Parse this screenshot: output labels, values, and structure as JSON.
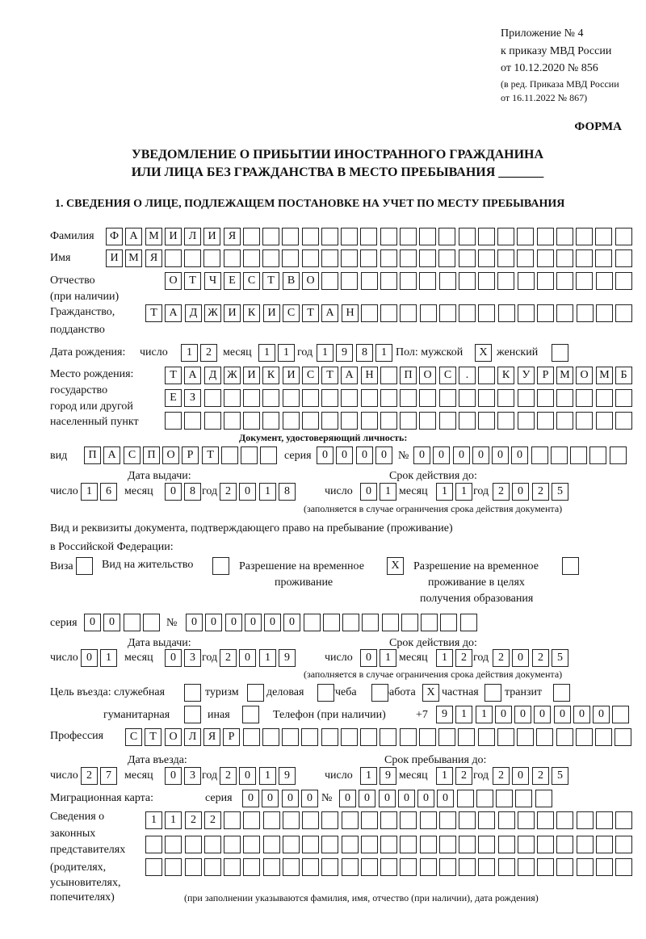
{
  "header": {
    "appendix": "Приложение № 4",
    "order": "к приказу МВД России",
    "order_date": "от 10.12.2020 № 856",
    "edition1": "(в ред. Приказа МВД России",
    "edition2": "от 16.11.2022 № 867)",
    "form": "ФОРМА",
    "title1": "УВЕДОМЛЕНИЕ О ПРИБЫТИИ ИНОСТРАННОГО ГРАЖДАНИНА",
    "title2": "ИЛИ ЛИЦА БЕЗ ГРАЖДАНСТВА В МЕСТО ПРЕБЫВАНИЯ _______"
  },
  "section1": {
    "heading": "1. СВЕДЕНИЯ О ЛИЦЕ, ПОДЛЕЖАЩЕМ ПОСТАНОВКЕ НА УЧЕТ ПО МЕСТУ ПРЕБЫВАНИЯ",
    "labels": {
      "surname": "Фамилия",
      "name": "Имя",
      "patronymic": "Отчество",
      "patronymic2": "(при наличии)",
      "citizenship": "Гражданство,",
      "citizenship2": "подданство",
      "birth_date": "Дата рождения:",
      "day": "число",
      "month": "месяц",
      "year": "год",
      "sex_male": "Пол: мужской",
      "sex_female": "женский",
      "birthplace1": "Место рождения:",
      "birthplace2": "государство",
      "birthplace3": "город или другой",
      "birthplace4": "населенный пункт",
      "id_doc": "Документ, удостоверяющий личность:",
      "kind": "вид",
      "series": "серия",
      "number": "№",
      "issue_date": "Дата выдачи:",
      "valid_until": "Срок действия до:",
      "validity_note": "(заполняется в случае ограничения срока действия документа)",
      "stay_doc1": "Вид и реквизиты документа, подтверждающего право на пребывание (проживание)",
      "stay_doc2": "в Российской Федерации:",
      "visa": "Виза",
      "residence": "Вид на жительство",
      "trp1": "Разрешение на временное",
      "trp2": "проживание",
      "trp_edu1": "Разрешение на временное",
      "trp_edu2": "проживание в целях",
      "trp_edu3": "получения образования",
      "purpose": "Цель въезда: служебная",
      "tourism": "туризм",
      "business": "деловая",
      "study": "учеба",
      "work": "работа",
      "private": "частная",
      "transit": "транзит",
      "humanitarian": "гуманитарная",
      "other": "иная",
      "phone": "Телефон (при наличии)",
      "phone_prefix": "+7",
      "profession": "Профессия",
      "entry_date": "Дата въезда:",
      "stay_until": "Срок пребывания до:",
      "migration_card": "Миграционная карта:",
      "reps1": "Сведения о",
      "reps2": "законных",
      "reps3": "представителях",
      "reps4": "(родителях,",
      "reps5": "усыновителях,",
      "reps6": "попечителях)",
      "reps_note": "(при заполнении указываются фамилия, имя, отчество (при наличии), дата рождения)"
    },
    "values": {
      "surname": "ФАМИЛИЯ",
      "name": "ИМЯ",
      "patronymic": "ОТЧЕСТВО",
      "citizenship": "ТАДЖИКИСТАН",
      "birth_day": "12",
      "birth_month": "11",
      "birth_year": "1981",
      "sex_male": "X",
      "sex_female": "",
      "birthplace_row1": "ТАДЖИКИСТАН ПОС. КУРМОМБ",
      "birthplace_row2": "ЕЗ",
      "birthplace_row3": "",
      "id_kind": "ПАСПОРТ",
      "id_series": "0000",
      "id_number": "000000",
      "id_issue_day": "16",
      "id_issue_month": "08",
      "id_issue_year": "2018",
      "id_valid_day": "01",
      "id_valid_month": "11",
      "id_valid_year": "2025",
      "visa": "",
      "residence": "",
      "trp": "X",
      "trp_edu": "",
      "stay_series": "00",
      "stay_number": "000000",
      "stay_issue_day": "01",
      "stay_issue_month": "03",
      "stay_issue_year": "2019",
      "stay_valid_day": "01",
      "stay_valid_month": "12",
      "stay_valid_year": "2025",
      "purpose_service": "",
      "purpose_tourism": "",
      "purpose_business": "",
      "purpose_study": "",
      "purpose_work": "X",
      "purpose_private": "",
      "purpose_transit": "",
      "purpose_humanitarian": "",
      "purpose_other": "",
      "phone": "911000000",
      "profession": "СТОЛЯР",
      "entry_day": "27",
      "entry_month": "03",
      "entry_year": "2019",
      "stay_day": "19",
      "stay_month": "12",
      "stay_year": "2025",
      "mc_series": "0000",
      "mc_number": "000000",
      "reps_row1": "1122",
      "reps_row2": "",
      "reps_row3": ""
    }
  }
}
